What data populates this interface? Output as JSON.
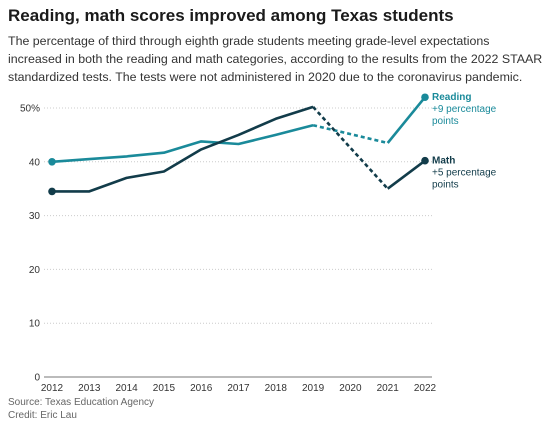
{
  "header": {
    "title": "Reading, math scores improved among Texas students",
    "subtitle": "The percentage of third through eighth grade students meeting grade-level expectations increased in both the reading and math categories, according to the results from the 2022 STAAR standardized tests. The tests were not administered in 2020 due to the coronavirus pandemic."
  },
  "footer": {
    "source": "Source: Texas Education Agency",
    "credit": "Credit: Eric Lau"
  },
  "colors": {
    "reading": "#1a8a9a",
    "math": "#123c4a",
    "grid": "#cccccc"
  },
  "chart_data": {
    "type": "line",
    "title": "Reading, math scores improved among Texas students",
    "x": [
      2012,
      2013,
      2014,
      2015,
      2016,
      2017,
      2018,
      2019,
      2020,
      2021,
      2022
    ],
    "x_ticks": [
      "2012",
      "2013",
      "2014",
      "2015",
      "2016",
      "2017",
      "2018",
      "2019",
      "2020",
      "2021",
      "2022"
    ],
    "ylim": [
      0,
      52
    ],
    "y_ticks": [
      0,
      10,
      20,
      30,
      40,
      50
    ],
    "y_tick_labels": [
      "0",
      "10",
      "20",
      "30",
      "40",
      "50%"
    ],
    "grid": "horizontal",
    "series": [
      {
        "name": "Reading",
        "note": "+9 percentage points",
        "values": [
          40,
          40.5,
          41,
          41.7,
          43.8,
          43.3,
          45,
          46.8,
          null,
          43.5,
          52
        ]
      },
      {
        "name": "Math",
        "note": "+5 percentage points",
        "values": [
          34.5,
          34.5,
          37,
          38.2,
          42.3,
          45,
          48,
          50.2,
          null,
          35,
          40.2
        ]
      }
    ],
    "notes": "2020 not administered; 2019–2021 connected with dashed line"
  }
}
